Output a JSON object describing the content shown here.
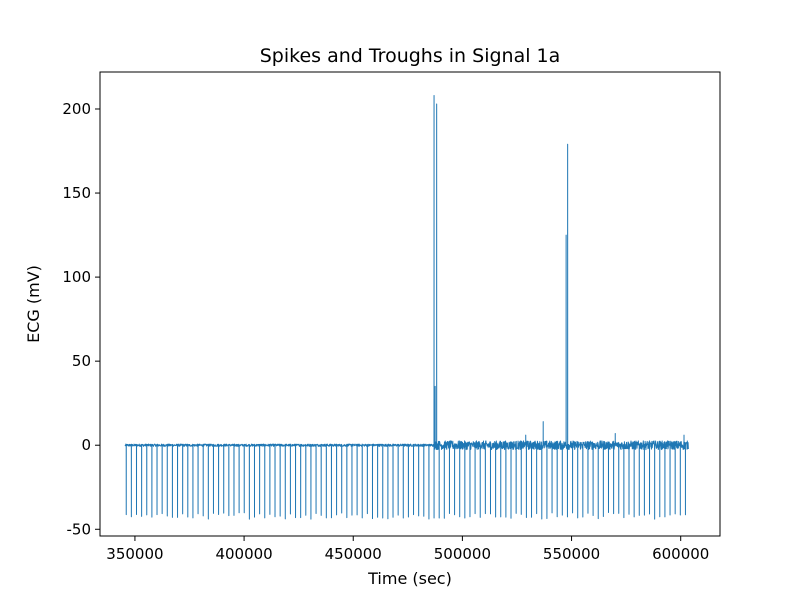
{
  "chart_data": {
    "type": "line",
    "title": "Spikes and Troughs in Signal 1a",
    "xlabel": "Time (sec)",
    "ylabel": "ECG (mV)",
    "xlim": [
      334000,
      618000
    ],
    "ylim": [
      -54,
      222
    ],
    "xticks": [
      350000,
      400000,
      450000,
      500000,
      550000,
      600000
    ],
    "yticks": [
      -50,
      0,
      50,
      100,
      150,
      200
    ],
    "grid": false,
    "legend": "none",
    "color": "#1f77b4",
    "series": [
      {
        "baseline": 0,
        "x_start": 345500,
        "x_end": 603500,
        "trough_interval": 2350,
        "trough_depth": -42,
        "noise_region_start": 487000,
        "spikes": [
          {
            "x": 487000,
            "y": 208
          },
          {
            "x": 487500,
            "y": 35
          },
          {
            "x": 488200,
            "y": 203
          },
          {
            "x": 529000,
            "y": 6
          },
          {
            "x": 537000,
            "y": 14
          },
          {
            "x": 547500,
            "y": 125
          },
          {
            "x": 548200,
            "y": 179
          },
          {
            "x": 570000,
            "y": 7
          },
          {
            "x": 601500,
            "y": 6
          }
        ]
      }
    ]
  }
}
